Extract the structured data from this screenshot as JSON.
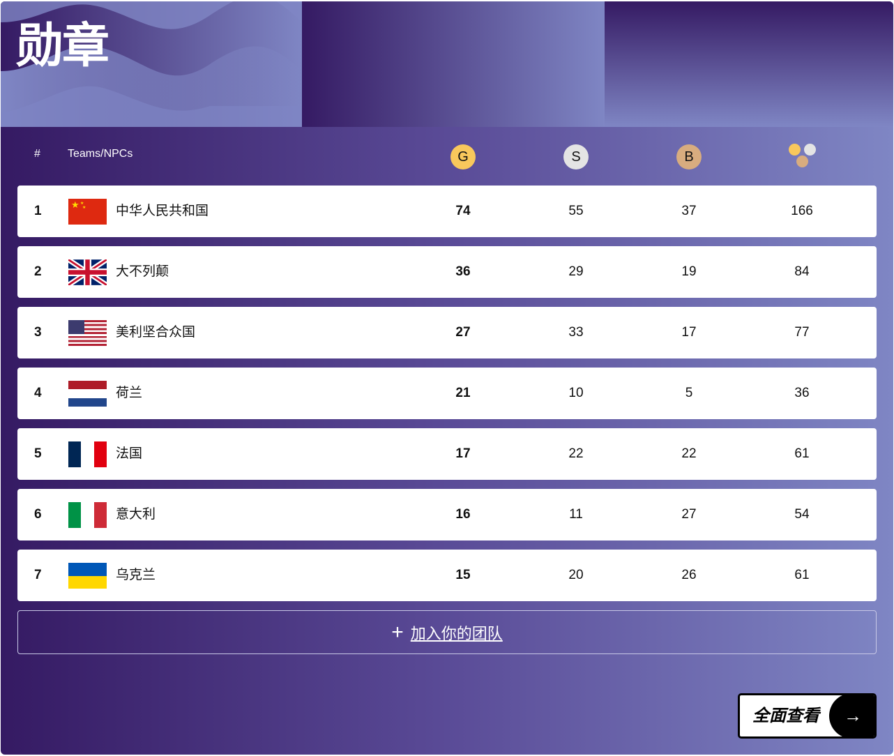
{
  "title": "勋章",
  "header": {
    "rank": "#",
    "team": "Teams/NPCs",
    "gold": "G",
    "silver": "S",
    "bronze": "B"
  },
  "colors": {
    "gold": "#f9c85c",
    "silver": "#e4e4e4",
    "bronze": "#d8ac7f",
    "bg_dark": "#351a63",
    "bg_light": "#7f86c4"
  },
  "rows": [
    {
      "rank": "1",
      "name": "中华人民共和国",
      "flag": "china",
      "gold": "74",
      "silver": "55",
      "bronze": "37",
      "total": "166"
    },
    {
      "rank": "2",
      "name": "大不列颠",
      "flag": "uk",
      "gold": "36",
      "silver": "29",
      "bronze": "19",
      "total": "84"
    },
    {
      "rank": "3",
      "name": "美利坚合众国",
      "flag": "usa",
      "gold": "27",
      "silver": "33",
      "bronze": "17",
      "total": "77"
    },
    {
      "rank": "4",
      "name": "荷兰",
      "flag": "netherlands",
      "gold": "21",
      "silver": "10",
      "bronze": "5",
      "total": "36"
    },
    {
      "rank": "5",
      "name": "法国",
      "flag": "france",
      "gold": "17",
      "silver": "22",
      "bronze": "22",
      "total": "61"
    },
    {
      "rank": "6",
      "name": "意大利",
      "flag": "italy",
      "gold": "16",
      "silver": "11",
      "bronze": "27",
      "total": "54"
    },
    {
      "rank": "7",
      "name": "乌克兰",
      "flag": "ukraine",
      "gold": "15",
      "silver": "20",
      "bronze": "26",
      "total": "61"
    }
  ],
  "add_team": {
    "icon": "plus-icon",
    "label": "加入你的团队"
  },
  "view_all": {
    "label": "全面查看",
    "icon": "arrow-right-icon"
  }
}
